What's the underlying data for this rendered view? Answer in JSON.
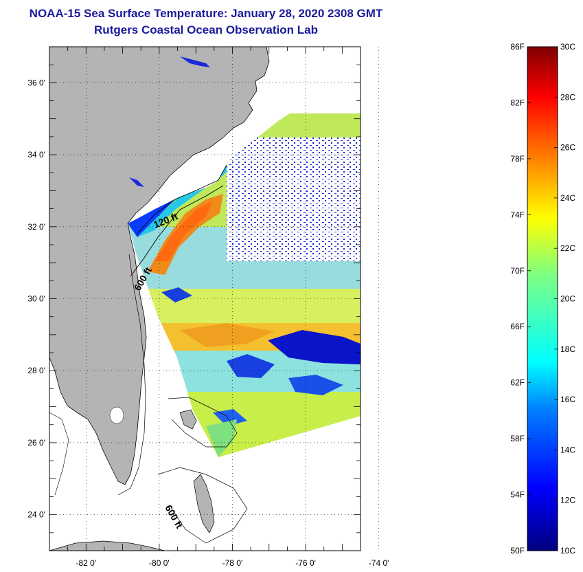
{
  "title": {
    "line1": "NOAA-15 Sea Surface Temperature:  January 28, 2020 2308 GMT",
    "line2": "Rutgers Coastal Ocean Observation Lab"
  },
  "map": {
    "lat_labels": [
      "36 0'",
      "34 0'",
      "32 0'",
      "30 0'",
      "28 0'",
      "26 0'",
      "24 0'"
    ],
    "lat_values": [
      36,
      34,
      32,
      30,
      28,
      26,
      24
    ],
    "lon_labels": [
      "-82 0'",
      "-80 0'",
      "-78 0'",
      "-76 0'",
      "-74 0'"
    ],
    "lon_values": [
      -82,
      -80,
      -78,
      -76,
      -74
    ],
    "lon_range": [
      -83,
      -74.5
    ],
    "lat_range": [
      23,
      37
    ],
    "contour_labels": [
      "120 ft",
      "600 ft",
      "600 ft"
    ],
    "land_color": "#b4b4b4"
  },
  "colorbar": {
    "f_labels": [
      "86F",
      "82F",
      "78F",
      "74F",
      "70F",
      "66F",
      "62F",
      "58F",
      "54F",
      "50F"
    ],
    "f_values": [
      86,
      82,
      78,
      74,
      70,
      66,
      62,
      58,
      54,
      50
    ],
    "c_labels": [
      "30C",
      "28C",
      "26C",
      "24C",
      "22C",
      "20C",
      "18C",
      "16C",
      "14C",
      "12C",
      "10C"
    ],
    "c_values": [
      30,
      28,
      26,
      24,
      22,
      20,
      18,
      16,
      14,
      12,
      10
    ],
    "range_c": [
      10,
      30
    ],
    "colors": [
      "#00007f",
      "#0000ff",
      "#007fff",
      "#00ffff",
      "#7fff7f",
      "#ffff00",
      "#ff7f00",
      "#ff0000",
      "#7f0000"
    ]
  }
}
